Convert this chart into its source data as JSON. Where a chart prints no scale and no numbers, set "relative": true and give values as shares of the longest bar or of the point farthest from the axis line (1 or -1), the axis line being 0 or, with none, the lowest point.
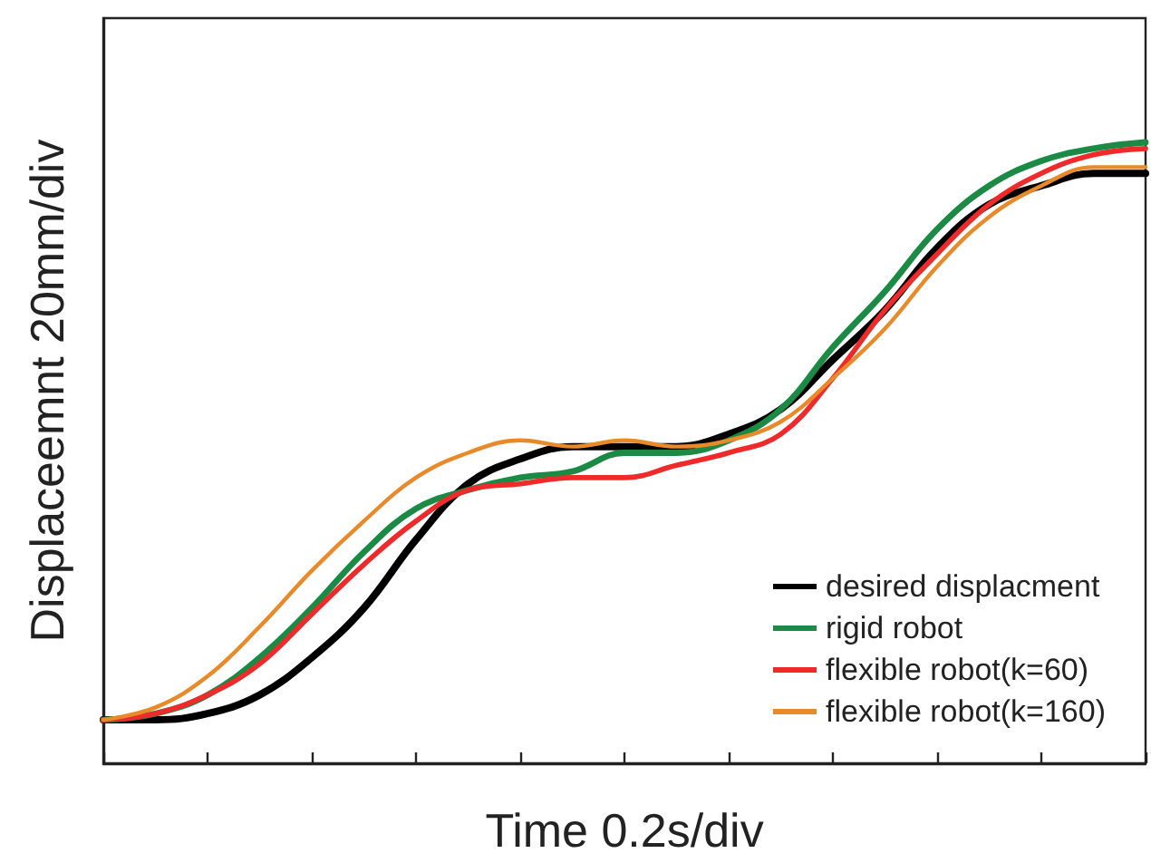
{
  "chart_data": {
    "type": "line",
    "xlabel": "Time 0.2s/div",
    "ylabel": "Displaceemnt 20mm/div",
    "relative": true,
    "marker": "none",
    "line_style": "solid",
    "grid": false,
    "legend": "bottom right",
    "categories": [
      null,
      null,
      null,
      null,
      null,
      null,
      null,
      null,
      null,
      null,
      null,
      null,
      null,
      null,
      null,
      null,
      null,
      null,
      null,
      null,
      null
    ],
    "series": [
      {
        "name": "desired displacment",
        "color": "#000000",
        "values": [
          0.07,
          0.07,
          0.08,
          0.11,
          0.17,
          0.25,
          0.36,
          0.45,
          0.49,
          0.51,
          0.51,
          0.51,
          0.53,
          0.57,
          0.65,
          0.73,
          0.83,
          0.9,
          0.93,
          0.95,
          0.95
        ]
      },
      {
        "name": "rigid robot",
        "color": "#1a8a45",
        "values": [
          0.07,
          0.08,
          0.11,
          0.17,
          0.25,
          0.34,
          0.41,
          0.44,
          0.46,
          0.47,
          0.5,
          0.5,
          0.52,
          0.57,
          0.67,
          0.76,
          0.86,
          0.93,
          0.97,
          0.99,
          1
        ]
      },
      {
        "name": "flexible robot(k=60)",
        "color": "#ee2a2a",
        "values": [
          0.07,
          0.08,
          0.11,
          0.16,
          0.24,
          0.32,
          0.39,
          0.44,
          0.45,
          0.46,
          0.46,
          0.48,
          0.5,
          0.53,
          0.62,
          0.73,
          0.82,
          0.9,
          0.95,
          0.98,
          0.99
        ]
      },
      {
        "name": "flexible robot(k=160)",
        "color": "#e8892a",
        "values": [
          0.07,
          0.09,
          0.14,
          0.22,
          0.31,
          0.39,
          0.46,
          0.5,
          0.52,
          0.51,
          0.52,
          0.51,
          0.52,
          0.55,
          0.62,
          0.7,
          0.8,
          0.88,
          0.93,
          0.96,
          0.96
        ]
      }
    ]
  }
}
